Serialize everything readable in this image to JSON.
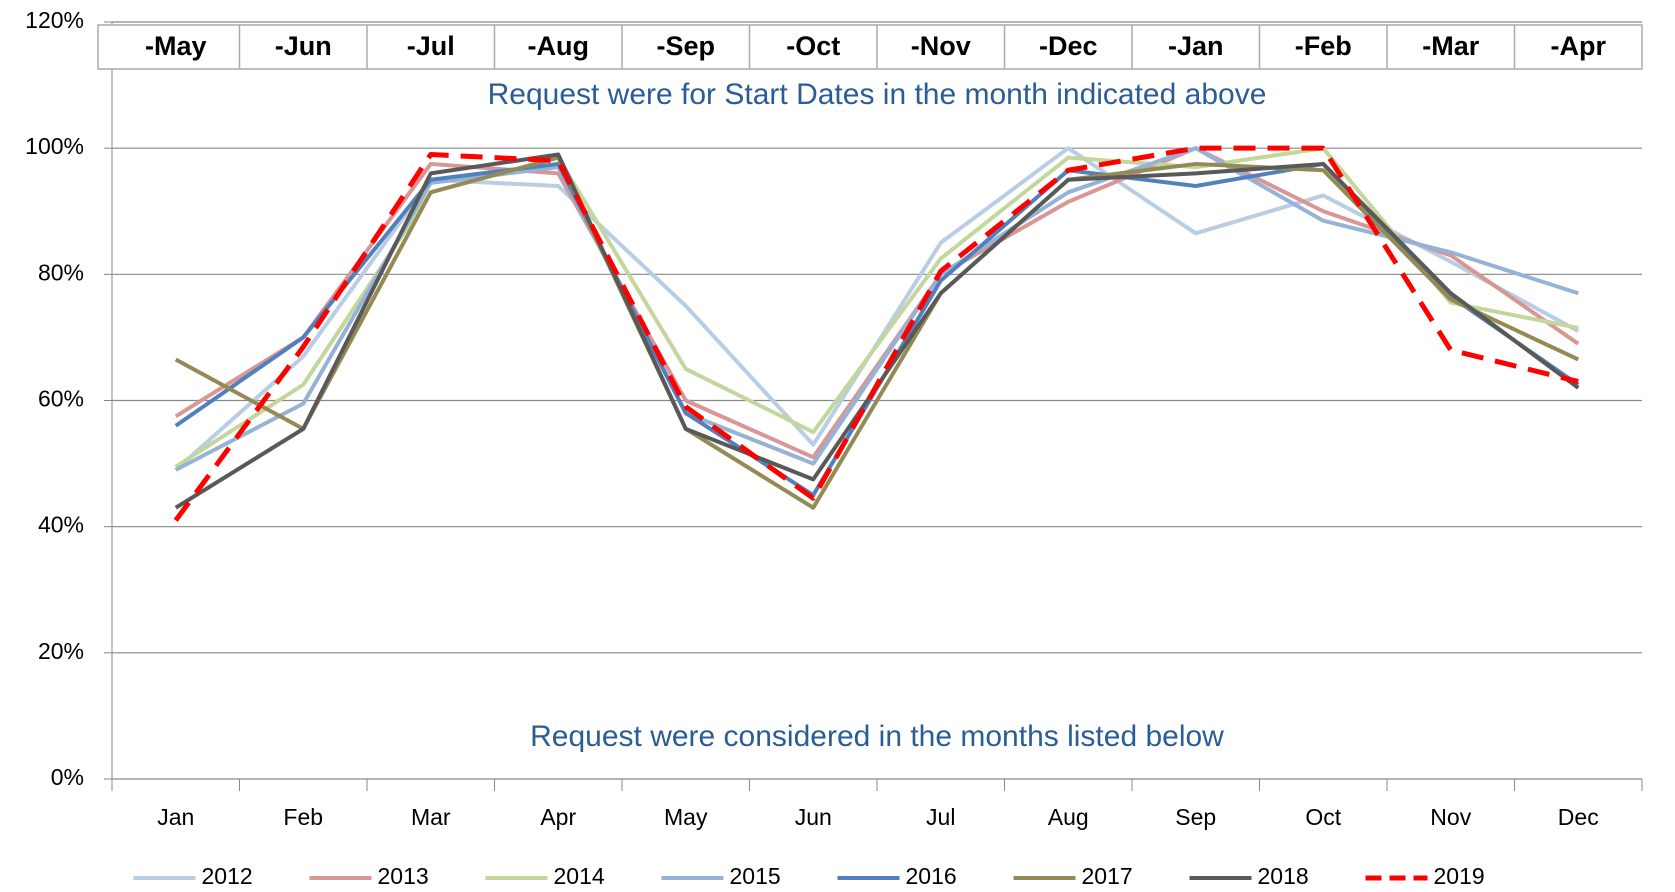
{
  "chart_data": {
    "type": "line",
    "header_labels": [
      "-May",
      "-Jun",
      "-Jul",
      "-Aug",
      "-Sep",
      "-Oct",
      "-Nov",
      "-Dec",
      "-Jan",
      "-Feb",
      "-Mar",
      "-Apr"
    ],
    "annotations": [
      "Request were for Start Dates in the month indicated above",
      "Request were considered in the months listed below"
    ],
    "categories": [
      "Jan",
      "Feb",
      "Mar",
      "Apr",
      "May",
      "Jun",
      "Jul",
      "Aug",
      "Sep",
      "Oct",
      "Nov",
      "Dec"
    ],
    "series": [
      {
        "name": "2012",
        "color": "#b9cde5",
        "values": [
          49,
          67,
          95,
          94,
          75,
          53,
          85,
          100,
          86.5,
          92.5,
          82,
          71
        ]
      },
      {
        "name": "2013",
        "color": "#d99694",
        "values": [
          57.5,
          70,
          97.5,
          96,
          60,
          51,
          80,
          91.5,
          100,
          90,
          83,
          69
        ]
      },
      {
        "name": "2014",
        "color": "#c3d69b",
        "values": [
          49.5,
          62.5,
          93,
          98.5,
          65,
          55,
          82.5,
          98.5,
          97,
          100,
          75.5,
          71.5
        ]
      },
      {
        "name": "2015",
        "color": "#95b3d7",
        "values": [
          49,
          59.5,
          94.5,
          97,
          58,
          50,
          80,
          93,
          100,
          88.5,
          83.5,
          77
        ]
      },
      {
        "name": "2016",
        "color": "#4f81bd",
        "values": [
          56,
          70,
          95,
          97.5,
          58,
          45,
          79,
          96.5,
          94,
          97.5,
          76.5,
          62.5
        ]
      },
      {
        "name": "2017",
        "color": "#948a54",
        "values": [
          66.5,
          55.5,
          93,
          98.5,
          55.5,
          43,
          77,
          95,
          97.5,
          96.5,
          76,
          66.5
        ]
      },
      {
        "name": "2018",
        "color": "#595959",
        "values": [
          43,
          55.5,
          96,
          99,
          55.5,
          47.5,
          77,
          95,
          96,
          97.5,
          77,
          62
        ]
      },
      {
        "name": "2019",
        "color": "#ff0000",
        "style": "dashed",
        "values": [
          41,
          68.5,
          99,
          98,
          59,
          44.5,
          80.5,
          96.5,
          100,
          100,
          68,
          63
        ]
      }
    ],
    "ylim": [
      0,
      120
    ],
    "yticks": [
      {
        "value": 0,
        "label": "0%"
      },
      {
        "value": 20,
        "label": "20%"
      },
      {
        "value": 40,
        "label": "40%"
      },
      {
        "value": 60,
        "label": "60%"
      },
      {
        "value": 80,
        "label": "80%"
      },
      {
        "value": 100,
        "label": "100%"
      },
      {
        "value": 120,
        "label": "120%"
      }
    ],
    "grid": true,
    "legend": "bottom"
  }
}
